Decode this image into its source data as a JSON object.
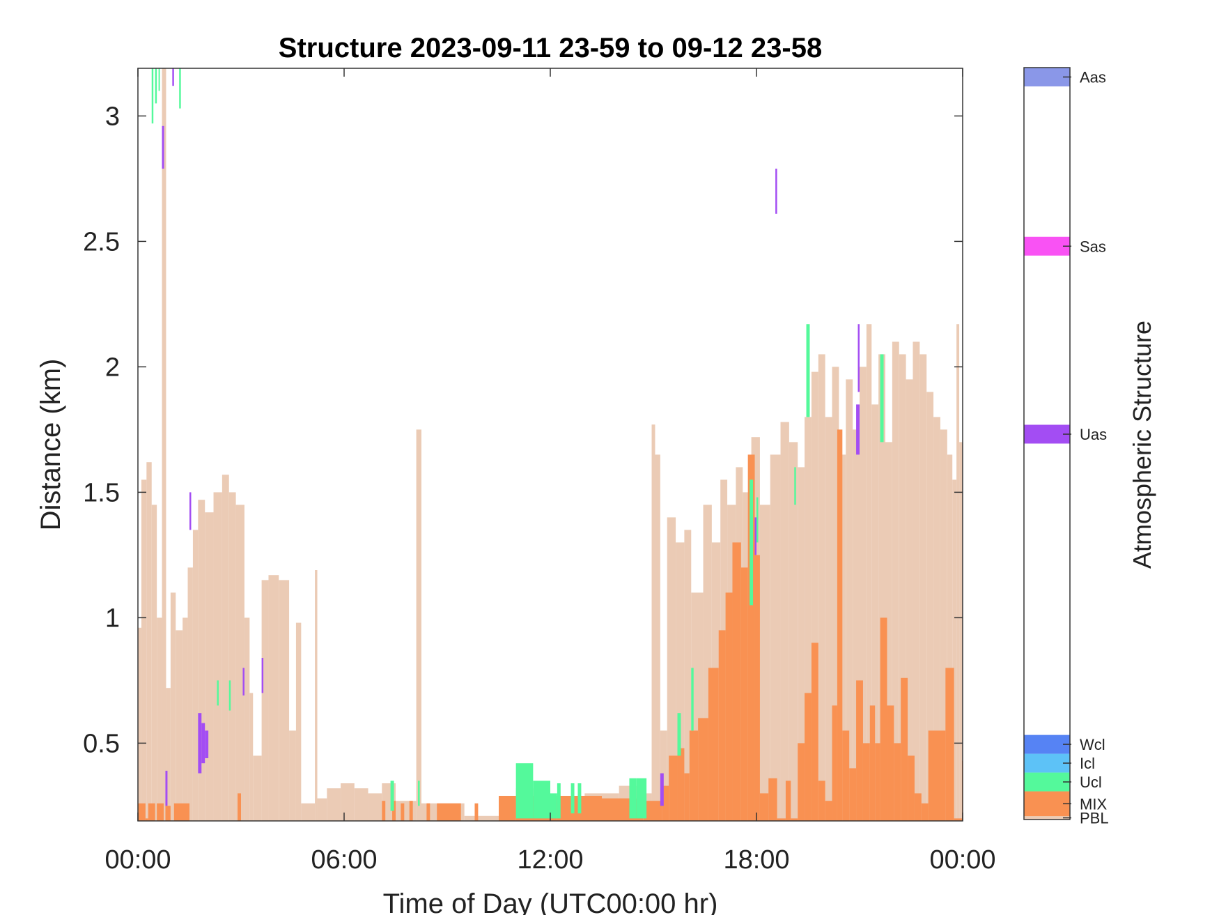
{
  "chart_data": {
    "type": "heatmap",
    "title": "Structure 2023-09-11 23-59 to 09-12 23-58",
    "xlabel": "Time of Day (UTC00:00 hr)",
    "ylabel": "Distance (km)",
    "xlim_hours": [
      0,
      24
    ],
    "ylim_km": [
      0.19,
      3.19
    ],
    "xticks": [
      {
        "hour": 0,
        "label": "00:00"
      },
      {
        "hour": 6,
        "label": "06:00"
      },
      {
        "hour": 12,
        "label": "12:00"
      },
      {
        "hour": 18,
        "label": "18:00"
      },
      {
        "hour": 24,
        "label": "00:00"
      }
    ],
    "yticks": [
      {
        "value": 0.5,
        "label": "0.5"
      },
      {
        "value": 1.0,
        "label": "1"
      },
      {
        "value": 1.5,
        "label": "1.5"
      },
      {
        "value": 2.0,
        "label": "2"
      },
      {
        "value": 2.5,
        "label": "2.5"
      },
      {
        "value": 3.0,
        "label": "3"
      }
    ],
    "grid": false,
    "colorbar": {
      "label": "Atmospheric Structure",
      "range": [
        0,
        40
      ],
      "categories": [
        {
          "name": "PBL",
          "from": 0.0,
          "to": 0.18,
          "color": "#EBCBB5"
        },
        {
          "name": "MIX",
          "from": 0.18,
          "to": 1.5,
          "color": "#F99152"
        },
        {
          "name": "Ucl",
          "from": 1.5,
          "to": 2.5,
          "color": "#54F99B"
        },
        {
          "name": "Icl",
          "from": 2.5,
          "to": 3.5,
          "color": "#5DC2F7"
        },
        {
          "name": "Wcl",
          "from": 3.5,
          "to": 4.5,
          "color": "#5683F4"
        },
        {
          "name": "Uas",
          "from": 20.0,
          "to": 21.0,
          "color": "#A34DF3"
        },
        {
          "name": "Sas",
          "from": 30.0,
          "to": 31.0,
          "color": "#F952F4"
        },
        {
          "name": "Aas",
          "from": 39.0,
          "to": 40.0,
          "color": "#8A97E8"
        }
      ]
    },
    "layers": {
      "PBL": [
        [
          0.0,
          0.1,
          0.96
        ],
        [
          0.1,
          0.25,
          1.55
        ],
        [
          0.25,
          0.4,
          1.62
        ],
        [
          0.4,
          0.55,
          1.45
        ],
        [
          0.55,
          0.7,
          1.0
        ],
        [
          0.7,
          0.82,
          3.19
        ],
        [
          0.82,
          0.95,
          0.72
        ],
        [
          0.95,
          1.1,
          1.1
        ],
        [
          1.1,
          1.3,
          0.95
        ],
        [
          1.3,
          1.45,
          1.0
        ],
        [
          1.45,
          1.6,
          1.2
        ],
        [
          1.6,
          1.75,
          1.35
        ],
        [
          1.75,
          1.95,
          1.47
        ],
        [
          1.95,
          2.2,
          1.42
        ],
        [
          2.2,
          2.45,
          1.5
        ],
        [
          2.45,
          2.65,
          1.57
        ],
        [
          2.65,
          2.85,
          1.5
        ],
        [
          2.85,
          3.1,
          1.45
        ],
        [
          3.1,
          3.25,
          1.0
        ],
        [
          3.25,
          3.35,
          0.7
        ],
        [
          3.35,
          3.6,
          0.45
        ],
        [
          3.6,
          3.8,
          1.15
        ],
        [
          3.8,
          4.1,
          1.17
        ],
        [
          4.1,
          4.4,
          1.15
        ],
        [
          4.4,
          4.6,
          0.55
        ],
        [
          4.6,
          4.75,
          0.98
        ],
        [
          4.75,
          5.15,
          0.26
        ],
        [
          5.15,
          5.22,
          1.19
        ],
        [
          5.22,
          5.5,
          0.28
        ],
        [
          5.5,
          5.9,
          0.32
        ],
        [
          5.9,
          6.3,
          0.34
        ],
        [
          6.3,
          6.7,
          0.32
        ],
        [
          6.7,
          7.1,
          0.3
        ],
        [
          7.1,
          7.5,
          0.34
        ],
        [
          7.5,
          8.1,
          0.27
        ],
        [
          8.1,
          8.25,
          1.75
        ],
        [
          8.25,
          9.5,
          0.26
        ],
        [
          9.5,
          10.5,
          0.21
        ],
        [
          10.5,
          11.0,
          0.28
        ],
        [
          11.0,
          11.5,
          0.32
        ],
        [
          11.5,
          12.0,
          0.3
        ],
        [
          12.0,
          13.0,
          0.29
        ],
        [
          13.0,
          14.0,
          0.3
        ],
        [
          14.0,
          14.7,
          0.33
        ],
        [
          14.7,
          14.95,
          0.3
        ],
        [
          14.95,
          15.05,
          1.77
        ],
        [
          15.05,
          15.2,
          1.65
        ],
        [
          15.2,
          15.4,
          0.55
        ],
        [
          15.4,
          15.65,
          1.4
        ],
        [
          15.65,
          15.9,
          1.3
        ],
        [
          15.9,
          16.1,
          1.35
        ],
        [
          16.1,
          16.45,
          1.1
        ],
        [
          16.45,
          16.7,
          1.45
        ],
        [
          16.7,
          16.95,
          1.3
        ],
        [
          16.95,
          17.15,
          1.55
        ],
        [
          17.15,
          17.4,
          1.45
        ],
        [
          17.4,
          17.6,
          1.6
        ],
        [
          17.6,
          17.85,
          1.5
        ],
        [
          17.85,
          18.1,
          1.72
        ],
        [
          18.1,
          18.4,
          1.45
        ],
        [
          18.4,
          18.7,
          1.65
        ],
        [
          18.7,
          18.95,
          1.78
        ],
        [
          18.95,
          19.2,
          1.7
        ],
        [
          19.2,
          19.4,
          1.6
        ],
        [
          19.4,
          19.6,
          1.8
        ],
        [
          19.6,
          19.8,
          1.98
        ],
        [
          19.8,
          20.0,
          2.05
        ],
        [
          20.0,
          20.2,
          1.8
        ],
        [
          20.2,
          20.4,
          2.0
        ],
        [
          20.4,
          20.6,
          1.65
        ],
        [
          20.6,
          20.8,
          1.95
        ],
        [
          20.8,
          21.0,
          1.75
        ],
        [
          21.0,
          21.2,
          2.0
        ],
        [
          21.2,
          21.35,
          2.17
        ],
        [
          21.35,
          21.55,
          1.85
        ],
        [
          21.55,
          21.75,
          2.05
        ],
        [
          21.75,
          21.95,
          1.7
        ],
        [
          21.95,
          22.15,
          2.1
        ],
        [
          22.15,
          22.35,
          2.05
        ],
        [
          22.35,
          22.55,
          1.95
        ],
        [
          22.55,
          22.75,
          2.1
        ],
        [
          22.75,
          22.95,
          2.05
        ],
        [
          22.95,
          23.15,
          1.9
        ],
        [
          23.15,
          23.35,
          1.8
        ],
        [
          23.35,
          23.55,
          1.75
        ],
        [
          23.55,
          23.7,
          1.65
        ],
        [
          23.7,
          23.82,
          1.55
        ],
        [
          23.82,
          23.9,
          2.17
        ],
        [
          23.9,
          24.0,
          1.7
        ]
      ],
      "MIX": [
        [
          0.0,
          0.22,
          0.26
        ],
        [
          0.22,
          0.3,
          0.2
        ],
        [
          0.3,
          0.5,
          0.26
        ],
        [
          0.55,
          0.75,
          0.26
        ],
        [
          0.8,
          0.95,
          0.25
        ],
        [
          1.05,
          1.5,
          0.26
        ],
        [
          2.9,
          3.0,
          0.3
        ],
        [
          7.1,
          7.2,
          0.27
        ],
        [
          7.4,
          7.5,
          0.27
        ],
        [
          7.65,
          7.75,
          0.26
        ],
        [
          7.9,
          8.0,
          0.27
        ],
        [
          8.4,
          8.5,
          0.26
        ],
        [
          8.7,
          9.4,
          0.26
        ],
        [
          9.8,
          9.9,
          0.26
        ],
        [
          10.5,
          11.0,
          0.29
        ],
        [
          11.0,
          12.2,
          0.29
        ],
        [
          12.2,
          13.5,
          0.29
        ],
        [
          13.5,
          14.7,
          0.28
        ],
        [
          14.7,
          15.25,
          0.27
        ],
        [
          15.25,
          15.45,
          0.33
        ],
        [
          15.45,
          15.7,
          0.45
        ],
        [
          15.7,
          15.9,
          0.48
        ],
        [
          15.9,
          16.05,
          0.38
        ],
        [
          16.05,
          16.3,
          0.55
        ],
        [
          16.3,
          16.6,
          0.6
        ],
        [
          16.6,
          16.9,
          0.8
        ],
        [
          16.9,
          17.1,
          0.95
        ],
        [
          17.1,
          17.3,
          1.1
        ],
        [
          17.3,
          17.55,
          1.3
        ],
        [
          17.55,
          17.75,
          1.2
        ],
        [
          17.75,
          17.95,
          1.65
        ],
        [
          17.95,
          18.1,
          1.25
        ],
        [
          18.1,
          18.35,
          0.3
        ],
        [
          18.35,
          18.6,
          0.36
        ],
        [
          18.6,
          18.85,
          0.2
        ],
        [
          18.85,
          19.0,
          0.35
        ],
        [
          19.0,
          19.2,
          0.2
        ],
        [
          19.2,
          19.4,
          0.5
        ],
        [
          19.4,
          19.6,
          0.7
        ],
        [
          19.6,
          19.8,
          0.9
        ],
        [
          19.8,
          20.0,
          0.35
        ],
        [
          20.0,
          20.2,
          0.27
        ],
        [
          20.2,
          20.35,
          0.65
        ],
        [
          20.35,
          20.5,
          1.75
        ],
        [
          20.5,
          20.7,
          0.55
        ],
        [
          20.7,
          20.9,
          0.4
        ],
        [
          20.9,
          21.1,
          0.75
        ],
        [
          21.1,
          21.3,
          0.5
        ],
        [
          21.3,
          21.45,
          0.65
        ],
        [
          21.45,
          21.6,
          0.5
        ],
        [
          21.6,
          21.8,
          1.0
        ],
        [
          21.8,
          22.0,
          0.65
        ],
        [
          22.0,
          22.2,
          0.5
        ],
        [
          22.2,
          22.4,
          0.76
        ],
        [
          22.4,
          22.6,
          0.45
        ],
        [
          22.6,
          22.8,
          0.3
        ],
        [
          22.8,
          23.0,
          0.26
        ],
        [
          23.0,
          23.25,
          0.55
        ],
        [
          23.25,
          23.5,
          0.55
        ],
        [
          23.5,
          23.75,
          0.8
        ],
        [
          23.75,
          23.98,
          0.2
        ],
        [
          23.98,
          24.0,
          0.43
        ]
      ],
      "Ucl": [
        [
          0.4,
          0.45,
          2.97,
          3.19
        ],
        [
          0.5,
          0.55,
          3.05,
          3.19
        ],
        [
          0.6,
          0.64,
          3.1,
          3.19
        ],
        [
          1.2,
          1.25,
          3.03,
          3.19
        ],
        [
          2.3,
          2.35,
          0.65,
          0.75
        ],
        [
          2.65,
          2.7,
          0.63,
          0.75
        ],
        [
          7.35,
          7.45,
          0.23,
          0.35
        ],
        [
          8.15,
          8.2,
          0.25,
          0.35
        ],
        [
          11.0,
          11.5,
          0.2,
          0.42
        ],
        [
          11.5,
          12.0,
          0.2,
          0.35
        ],
        [
          12.0,
          12.2,
          0.2,
          0.3
        ],
        [
          12.2,
          12.3,
          0.2,
          0.34
        ],
        [
          12.6,
          12.7,
          0.22,
          0.34
        ],
        [
          12.8,
          12.9,
          0.22,
          0.34
        ],
        [
          14.3,
          14.5,
          0.2,
          0.36
        ],
        [
          14.5,
          14.8,
          0.2,
          0.36
        ],
        [
          15.7,
          15.8,
          0.45,
          0.62
        ],
        [
          16.1,
          16.17,
          0.55,
          0.8
        ],
        [
          17.8,
          17.9,
          1.05,
          1.55
        ],
        [
          18.0,
          18.05,
          1.3,
          1.48
        ],
        [
          19.1,
          19.15,
          1.45,
          1.6
        ],
        [
          19.45,
          19.55,
          1.8,
          2.17
        ],
        [
          21.6,
          21.7,
          1.7,
          2.05
        ]
      ],
      "Uas": [
        [
          0.7,
          0.76,
          2.79,
          2.96
        ],
        [
          0.8,
          0.86,
          0.25,
          0.39
        ],
        [
          1.0,
          1.05,
          3.12,
          3.19
        ],
        [
          1.5,
          1.55,
          1.35,
          1.5
        ],
        [
          1.75,
          1.85,
          0.38,
          0.62
        ],
        [
          1.85,
          1.95,
          0.42,
          0.58
        ],
        [
          1.95,
          2.05,
          0.44,
          0.55
        ],
        [
          3.05,
          3.1,
          0.69,
          0.8
        ],
        [
          3.6,
          3.65,
          0.7,
          0.84
        ],
        [
          18.55,
          18.6,
          2.61,
          2.79
        ],
        [
          17.95,
          18.0,
          1.25,
          1.4
        ],
        [
          20.9,
          21.0,
          1.65,
          1.85
        ],
        [
          20.95,
          21.0,
          1.9,
          2.17
        ],
        [
          15.2,
          15.3,
          0.25,
          0.38
        ]
      ]
    }
  }
}
